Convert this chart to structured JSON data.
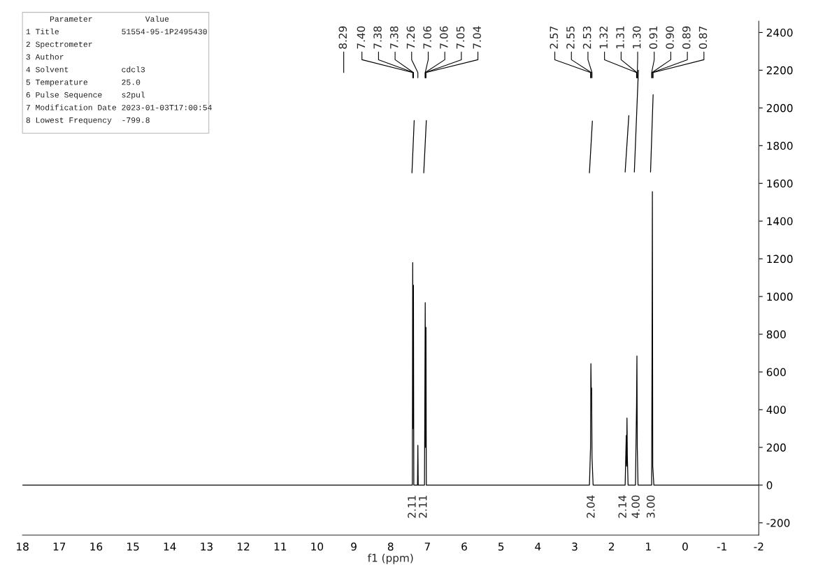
{
  "chart_data": {
    "type": "line",
    "xlabel": "f1 (ppm)",
    "xlim": [
      18,
      -2
    ],
    "xticks": [
      18,
      17,
      16,
      15,
      14,
      13,
      12,
      11,
      10,
      9,
      8,
      7,
      6,
      5,
      4,
      3,
      2,
      1,
      0,
      -1,
      -2
    ],
    "ylim": [
      -265,
      2460
    ],
    "yticks": [
      -200,
      0,
      200,
      400,
      600,
      800,
      1000,
      1200,
      1400,
      1600,
      1800,
      2000,
      2200,
      2400
    ],
    "grid": false,
    "legend": false,
    "marker": "none",
    "line_style": "solid",
    "series": [
      {
        "color": "#000000",
        "x": [
          18,
          7.45,
          7.41,
          7.4,
          7.39,
          7.38,
          7.37,
          7.27,
          7.26,
          7.25,
          7.08,
          7.06,
          7.05,
          7.04,
          7.03,
          2.6,
          2.57,
          2.56,
          2.55,
          2.54,
          2.53,
          2.5,
          1.63,
          1.6,
          1.59,
          1.58,
          1.57,
          1.55,
          1.35,
          1.32,
          1.31,
          1.3,
          1.28,
          0.94,
          0.91,
          0.9,
          0.89,
          0.88,
          0.85,
          -2
        ],
        "values": [
          0,
          0,
          0,
          1180,
          300,
          1060,
          0,
          0,
          211,
          0,
          0,
          967,
          200,
          837,
          0,
          0,
          200,
          644,
          480,
          515,
          150,
          0,
          0,
          263,
          100,
          356,
          150,
          0,
          0,
          430,
          685,
          200,
          0,
          0,
          0,
          644,
          1556,
          100,
          0,
          0
        ]
      },
      {
        "type": "line",
        "color": "#000000",
        "x": [
          7.42,
          7.36,
          7.3,
          7.1,
          7.03,
          5,
          2.6,
          2.52,
          2.0,
          1.63,
          1.53,
          1.45,
          1.38,
          1.27,
          1.1,
          0.94,
          0.87
        ],
        "values": [
          1656,
          1933,
          null,
          1656,
          1933,
          null,
          1656,
          1930,
          null,
          1660,
          1959,
          null,
          1660,
          2200,
          null,
          1660,
          2070
        ]
      }
    ],
    "annotations": [
      "     Parameter           Value",
      "1 Title             51554-95-1P2495430",
      "2 Spectrometer",
      "3 Author",
      "4 Solvent           cdcl3",
      "5 Temperature       25.0",
      "6 Pulse Sequence    s2pul",
      "7 Modification Date 2023-01-03T17:00:54",
      "8 Lowest Frequency  -799.8",
      "8.29",
      {
        "text": "7.40",
        "x": 7.4
      },
      {
        "text": "7.38",
        "x": 7.38
      },
      {
        "text": "7.38",
        "x": 7.38
      },
      {
        "text": "7.26",
        "x": 7.26
      },
      {
        "text": "7.06",
        "x": 7.06
      },
      {
        "text": "7.06",
        "x": 7.06
      },
      {
        "text": "7.05",
        "x": 7.05
      },
      {
        "text": "7.04",
        "x": 7.04
      },
      {
        "text": "2.57",
        "x": 2.57
      },
      {
        "text": "2.55",
        "x": 2.55
      },
      {
        "text": "2.53",
        "x": 2.53
      },
      {
        "text": "1.32",
        "x": 1.32
      },
      {
        "text": "1.31",
        "x": 1.31
      },
      {
        "text": "1.30",
        "x": 1.3
      },
      {
        "text": "0.91",
        "x": 0.91
      },
      {
        "text": "0.90",
        "x": 0.9
      },
      {
        "text": "0.89",
        "x": 0.89
      },
      {
        "text": "0.87",
        "x": 0.87
      },
      {
        "text": "2.11",
        "x": 7.4,
        "y": 0
      },
      {
        "text": "2.11",
        "x": 7.1,
        "y": 0
      },
      {
        "text": "2.04",
        "x": 2.54,
        "y": 0
      },
      {
        "text": "2.14",
        "x": 1.68,
        "y": 0
      },
      {
        "text": "4.00",
        "x": 1.32,
        "y": 0
      },
      {
        "text": "3.00",
        "x": 0.91,
        "y": 0
      }
    ]
  }
}
